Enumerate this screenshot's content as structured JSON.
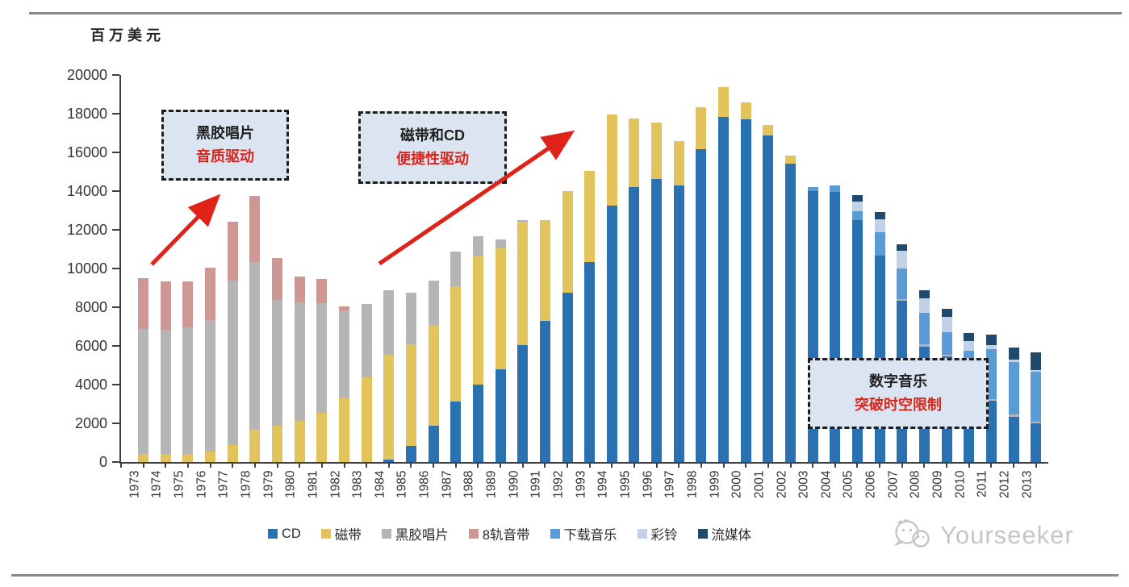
{
  "page": {
    "unit_label": "百万美元",
    "watermark_text": "Yourseeker"
  },
  "annotations": [
    {
      "line1": "黑胶唱片",
      "line2": "音质驱动"
    },
    {
      "line1": "磁带和CD",
      "line2": "便捷性驱动"
    },
    {
      "line1": "数字音乐",
      "line2": "突破时空限制"
    }
  ],
  "chart_data": {
    "type": "bar",
    "stacked": true,
    "title": "",
    "ylabel": "百万美元",
    "ylim": [
      0,
      20000
    ],
    "ytick_step": 2000,
    "grid": false,
    "legend_position": "bottom",
    "categories": [
      1973,
      1974,
      1975,
      1976,
      1977,
      1978,
      1979,
      1980,
      1981,
      1982,
      1983,
      1984,
      1985,
      1986,
      1987,
      1988,
      1989,
      1990,
      1991,
      1992,
      1993,
      1994,
      1995,
      1996,
      1997,
      1998,
      1999,
      2000,
      2001,
      2002,
      2003,
      2004,
      2005,
      2006,
      2007,
      2008,
      2009,
      2010,
      2011,
      2012,
      2013
    ],
    "series": [
      {
        "name": "CD",
        "color": "#2971b0",
        "values": [
          0,
          0,
          0,
          0,
          0,
          0,
          0,
          0,
          0,
          0,
          0,
          120,
          820,
          1860,
          3110,
          4020,
          4780,
          6030,
          7280,
          8740,
          10330,
          13250,
          14220,
          14640,
          14290,
          16170,
          17840,
          17700,
          16860,
          15400,
          14010,
          13950,
          12490,
          10680,
          8330,
          5960,
          5470,
          4500,
          3150,
          2350,
          2000
        ]
      },
      {
        "name": "磁带",
        "color": "#e2c35c",
        "values": [
          400,
          400,
          400,
          540,
          890,
          1650,
          1860,
          2140,
          2550,
          3320,
          4360,
          5420,
          5280,
          5210,
          5970,
          6660,
          6250,
          6390,
          5230,
          5280,
          4720,
          4720,
          3550,
          2920,
          2300,
          2150,
          1520,
          900,
          560,
          420,
          0,
          0,
          0,
          0,
          0,
          0,
          0,
          0,
          0,
          0,
          0
        ]
      },
      {
        "name": "黑胶唱片",
        "color": "#b5b5b5",
        "values": [
          6460,
          6430,
          6560,
          6810,
          8470,
          8680,
          6530,
          6110,
          5670,
          4510,
          3820,
          3330,
          2640,
          2290,
          1810,
          970,
          480,
          80,
          0,
          0,
          0,
          0,
          0,
          0,
          0,
          0,
          0,
          0,
          0,
          0,
          0,
          0,
          0,
          0,
          80,
          140,
          70,
          80,
          100,
          100,
          100
        ]
      },
      {
        "name": "8轨音带",
        "color": "#ce9794",
        "values": [
          2640,
          2500,
          2370,
          2700,
          3050,
          3400,
          2150,
          1320,
          1240,
          210,
          0,
          0,
          0,
          0,
          0,
          0,
          0,
          0,
          0,
          0,
          0,
          0,
          0,
          0,
          0,
          0,
          0,
          0,
          0,
          0,
          0,
          0,
          0,
          0,
          0,
          0,
          0,
          0,
          0,
          0,
          0
        ]
      },
      {
        "name": "下载音乐",
        "color": "#5b9bd5",
        "values": [
          0,
          0,
          0,
          0,
          0,
          0,
          0,
          0,
          0,
          0,
          0,
          0,
          0,
          0,
          0,
          0,
          0,
          0,
          0,
          0,
          0,
          0,
          0,
          0,
          0,
          0,
          0,
          0,
          0,
          0,
          210,
          340,
          480,
          1180,
          1600,
          1600,
          1180,
          1150,
          2600,
          2700,
          2570
        ]
      },
      {
        "name": "彩铃",
        "color": "#c1d2e8",
        "values": [
          0,
          0,
          0,
          0,
          0,
          0,
          0,
          0,
          0,
          0,
          0,
          0,
          0,
          0,
          0,
          0,
          0,
          0,
          0,
          0,
          0,
          0,
          0,
          0,
          0,
          0,
          0,
          0,
          0,
          0,
          0,
          0,
          490,
          700,
          900,
          770,
          770,
          500,
          200,
          150,
          80
        ]
      },
      {
        "name": "流媒体",
        "color": "#1e4a6d",
        "values": [
          0,
          0,
          0,
          0,
          0,
          0,
          0,
          0,
          0,
          0,
          0,
          0,
          0,
          0,
          0,
          0,
          0,
          0,
          0,
          0,
          0,
          0,
          0,
          0,
          0,
          0,
          0,
          0,
          0,
          0,
          0,
          0,
          350,
          350,
          350,
          420,
          420,
          420,
          530,
          630,
          900
        ]
      }
    ],
    "accent_colors": {
      "arrow_red": "#e02318",
      "callout_fill": "#dbe5f1",
      "axis": "#404040"
    }
  }
}
